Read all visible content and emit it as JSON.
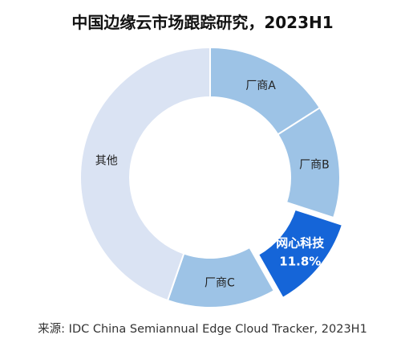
{
  "title": "中国边缘云市场跟踪研究，2023H1",
  "source": "来源: IDC China Semiannual Edge Cloud Tracker, 2023H1",
  "chart_data": {
    "type": "pie",
    "variant": "donut",
    "title": "中国边缘云市场跟踪研究，2023H1",
    "slices": [
      {
        "label": "厂商A",
        "value": 16.0,
        "color": "#9dc3e6"
      },
      {
        "label": "厂商B",
        "value": 14.0,
        "color": "#9dc3e6"
      },
      {
        "label": "网心科技",
        "value": 11.8,
        "display": "11.8%",
        "color": "#1565d8",
        "highlight": true
      },
      {
        "label": "厂商C",
        "value": 13.5,
        "color": "#9dc3e6"
      },
      {
        "label": "其他",
        "value": 44.7,
        "color": "#dae3f3"
      }
    ],
    "start_angle_deg": 0,
    "direction": "clockwise",
    "legend": "none"
  }
}
